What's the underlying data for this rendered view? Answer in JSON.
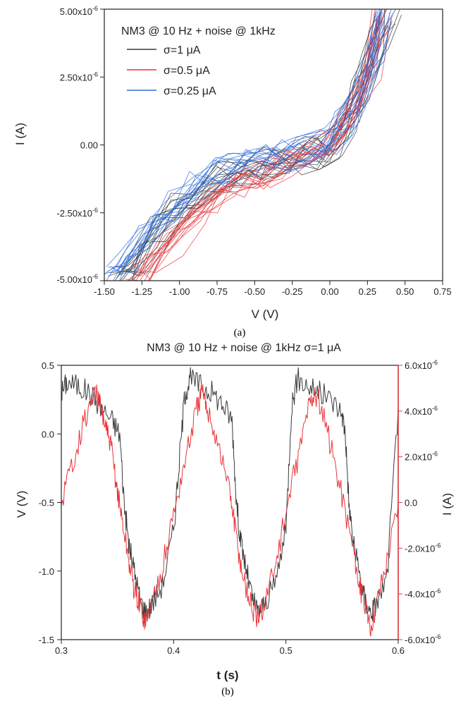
{
  "chart_data": [
    {
      "type": "line",
      "panel_label": "(a)",
      "legend_title": "NM3 @ 10 Hz + noise @ 1kHz",
      "xlabel": "V (V)",
      "ylabel": "I (A)",
      "xlim": [
        -1.5,
        0.75
      ],
      "ylim": [
        -5e-06,
        5e-06
      ],
      "x_ticks": [
        -1.5,
        -1.25,
        -1.0,
        -0.75,
        -0.5,
        -0.25,
        0.0,
        0.25,
        0.5,
        0.75
      ],
      "x_tick_labels": [
        "-1.50",
        "-1.25",
        "-1.00",
        "-0.75",
        "-0.50",
        "-0.25",
        "0.00",
        "0.25",
        "0.50",
        "0.75"
      ],
      "y_ticks": [
        -5e-06,
        -2.5e-06,
        0.0,
        2.5e-06,
        5e-06
      ],
      "y_tick_labels": [
        "-5.00x10-6",
        "-2.50x10-6",
        "0.00",
        "2.50x10-6",
        "5.00x10-6"
      ],
      "grid": false,
      "legend_position": "top-left",
      "series": [
        {
          "name": "σ=1 μA",
          "color": "#3a3a3a",
          "points": [
            [
              -1.42,
              -5e-06
            ],
            [
              -1.3,
              -4.2e-06
            ],
            [
              -1.15,
              -3.2e-06
            ],
            [
              -1.0,
              -2.4e-06
            ],
            [
              -0.85,
              -1.7e-06
            ],
            [
              -0.7,
              -1.2e-06
            ],
            [
              -0.55,
              -9e-07
            ],
            [
              -0.4,
              -7e-07
            ],
            [
              -0.25,
              -5e-07
            ],
            [
              -0.1,
              -3e-07
            ],
            [
              0.0,
              0.0
            ],
            [
              0.1,
              6e-07
            ],
            [
              0.2,
              1.8e-06
            ],
            [
              0.3,
              3.6e-06
            ],
            [
              0.38,
              5e-06
            ]
          ]
        },
        {
          "name": "σ=0.5 μA",
          "color": "#e8353a",
          "points": [
            [
              -1.3,
              -5e-06
            ],
            [
              -1.2,
              -4.5e-06
            ],
            [
              -1.05,
              -3.6e-06
            ],
            [
              -0.9,
              -2.8e-06
            ],
            [
              -0.75,
              -2e-06
            ],
            [
              -0.6,
              -1.4e-06
            ],
            [
              -0.45,
              -1e-06
            ],
            [
              -0.3,
              -7e-07
            ],
            [
              -0.15,
              -4e-07
            ],
            [
              0.0,
              0.0
            ],
            [
              0.1,
              5e-07
            ],
            [
              0.2,
              1.5e-06
            ],
            [
              0.28,
              3e-06
            ],
            [
              0.35,
              5e-06
            ]
          ]
        },
        {
          "name": "σ=0.25 μA",
          "color": "#2f6fdc",
          "points": [
            [
              -1.45,
              -5e-06
            ],
            [
              -1.35,
              -4.2e-06
            ],
            [
              -1.2,
              -3.2e-06
            ],
            [
              -1.05,
              -2.3e-06
            ],
            [
              -0.9,
              -1.6e-06
            ],
            [
              -0.75,
              -1.1e-06
            ],
            [
              -0.6,
              -8e-07
            ],
            [
              -0.45,
              -6e-07
            ],
            [
              -0.3,
              -4e-07
            ],
            [
              -0.15,
              -2e-07
            ],
            [
              0.0,
              0.0
            ],
            [
              0.1,
              6e-07
            ],
            [
              0.2,
              1.8e-06
            ],
            [
              0.3,
              3.5e-06
            ],
            [
              0.37,
              5e-06
            ]
          ]
        }
      ]
    },
    {
      "type": "line",
      "panel_label": "(b)",
      "title": "NM3 @ 10 Hz + noise @ 1kHz σ=1 μA",
      "xlabel": "t (s)",
      "ylabel_left": "V (V)",
      "ylabel_right": "I (A)",
      "xlim": [
        0.3,
        0.6
      ],
      "ylim_left": [
        -1.5,
        0.5
      ],
      "ylim_right": [
        -6e-06,
        6e-06
      ],
      "x_ticks": [
        0.3,
        0.4,
        0.5,
        0.6
      ],
      "x_tick_labels": [
        "0.3",
        "0.4",
        "0.5",
        "0.6"
      ],
      "y_left_ticks": [
        -1.5,
        -1.0,
        -0.5,
        0.0,
        0.5
      ],
      "y_left_tick_labels": [
        "-1.5",
        "-1.0",
        "-0.5",
        "0.0",
        "0.5"
      ],
      "y_right_ticks": [
        -6e-06,
        -4e-06,
        -2e-06,
        0.0,
        2e-06,
        4e-06,
        6e-06
      ],
      "y_right_tick_labels": [
        "-6.0x10-6",
        "-4.0x10-6",
        "-2.0x10-6",
        "0.0",
        "2.0x10-6",
        "4.0x10-6",
        "6.0x10-6"
      ],
      "grid": false,
      "series": [
        {
          "axis": "left",
          "color": "#3a3a3a",
          "points": [
            [
              0.3,
              0.3
            ],
            [
              0.305,
              0.38
            ],
            [
              0.315,
              0.35
            ],
            [
              0.325,
              0.3
            ],
            [
              0.335,
              0.2
            ],
            [
              0.345,
              0.1
            ],
            [
              0.352,
              0.0
            ],
            [
              0.356,
              -0.5
            ],
            [
              0.36,
              -0.8
            ],
            [
              0.365,
              -1.0
            ],
            [
              0.37,
              -1.2
            ],
            [
              0.375,
              -1.3
            ],
            [
              0.38,
              -1.25
            ],
            [
              0.39,
              -1.1
            ],
            [
              0.4,
              -0.7
            ],
            [
              0.405,
              -0.2
            ],
            [
              0.41,
              0.3
            ],
            [
              0.415,
              0.4
            ],
            [
              0.425,
              0.35
            ],
            [
              0.435,
              0.3
            ],
            [
              0.445,
              0.2
            ],
            [
              0.452,
              0.1
            ],
            [
              0.456,
              -0.5
            ],
            [
              0.46,
              -0.8
            ],
            [
              0.465,
              -1.0
            ],
            [
              0.47,
              -1.2
            ],
            [
              0.475,
              -1.3
            ],
            [
              0.48,
              -1.25
            ],
            [
              0.49,
              -1.1
            ],
            [
              0.5,
              -0.7
            ],
            [
              0.505,
              0.2
            ],
            [
              0.51,
              0.4
            ],
            [
              0.52,
              0.35
            ],
            [
              0.53,
              0.3
            ],
            [
              0.54,
              0.25
            ],
            [
              0.55,
              0.15
            ],
            [
              0.553,
              0.0
            ],
            [
              0.556,
              -0.5
            ],
            [
              0.56,
              -0.8
            ],
            [
              0.565,
              -1.0
            ],
            [
              0.57,
              -1.2
            ],
            [
              0.575,
              -1.3
            ],
            [
              0.58,
              -1.25
            ],
            [
              0.59,
              -1.05
            ],
            [
              0.6,
              0.2
            ]
          ]
        },
        {
          "axis": "right",
          "color": "#e8353a",
          "points": [
            [
              0.3,
              0.0
            ],
            [
              0.31,
              1.8e-06
            ],
            [
              0.32,
              3.5e-06
            ],
            [
              0.33,
              4.8e-06
            ],
            [
              0.335,
              4.2e-06
            ],
            [
              0.34,
              3.2e-06
            ],
            [
              0.345,
              2.2e-06
            ],
            [
              0.35,
              5e-07
            ],
            [
              0.355,
              -1e-06
            ],
            [
              0.36,
              -2.5e-06
            ],
            [
              0.365,
              -3.8e-06
            ],
            [
              0.37,
              -4.5e-06
            ],
            [
              0.375,
              -5.2e-06
            ],
            [
              0.38,
              -4.5e-06
            ],
            [
              0.39,
              -2.8e-06
            ],
            [
              0.4,
              -5e-07
            ],
            [
              0.41,
              1.8e-06
            ],
            [
              0.42,
              4e-06
            ],
            [
              0.425,
              4.8e-06
            ],
            [
              0.43,
              4.2e-06
            ],
            [
              0.44,
              2.5e-06
            ],
            [
              0.45,
              5e-07
            ],
            [
              0.455,
              -1.2e-06
            ],
            [
              0.46,
              -2.8e-06
            ],
            [
              0.465,
              -3.8e-06
            ],
            [
              0.47,
              -4.6e-06
            ],
            [
              0.475,
              -5.2e-06
            ],
            [
              0.48,
              -4.5e-06
            ],
            [
              0.49,
              -2.8e-06
            ],
            [
              0.5,
              -5e-07
            ],
            [
              0.51,
              1.8e-06
            ],
            [
              0.52,
              4.2e-06
            ],
            [
              0.525,
              4.8e-06
            ],
            [
              0.53,
              4.3e-06
            ],
            [
              0.54,
              2.5e-06
            ],
            [
              0.55,
              3e-07
            ],
            [
              0.56,
              -2e-06
            ],
            [
              0.565,
              -3.5e-06
            ],
            [
              0.57,
              -4.5e-06
            ],
            [
              0.575,
              -5.5e-06
            ],
            [
              0.58,
              -4.5e-06
            ],
            [
              0.59,
              -2.5e-06
            ],
            [
              0.6,
              0.0
            ]
          ]
        }
      ]
    }
  ]
}
